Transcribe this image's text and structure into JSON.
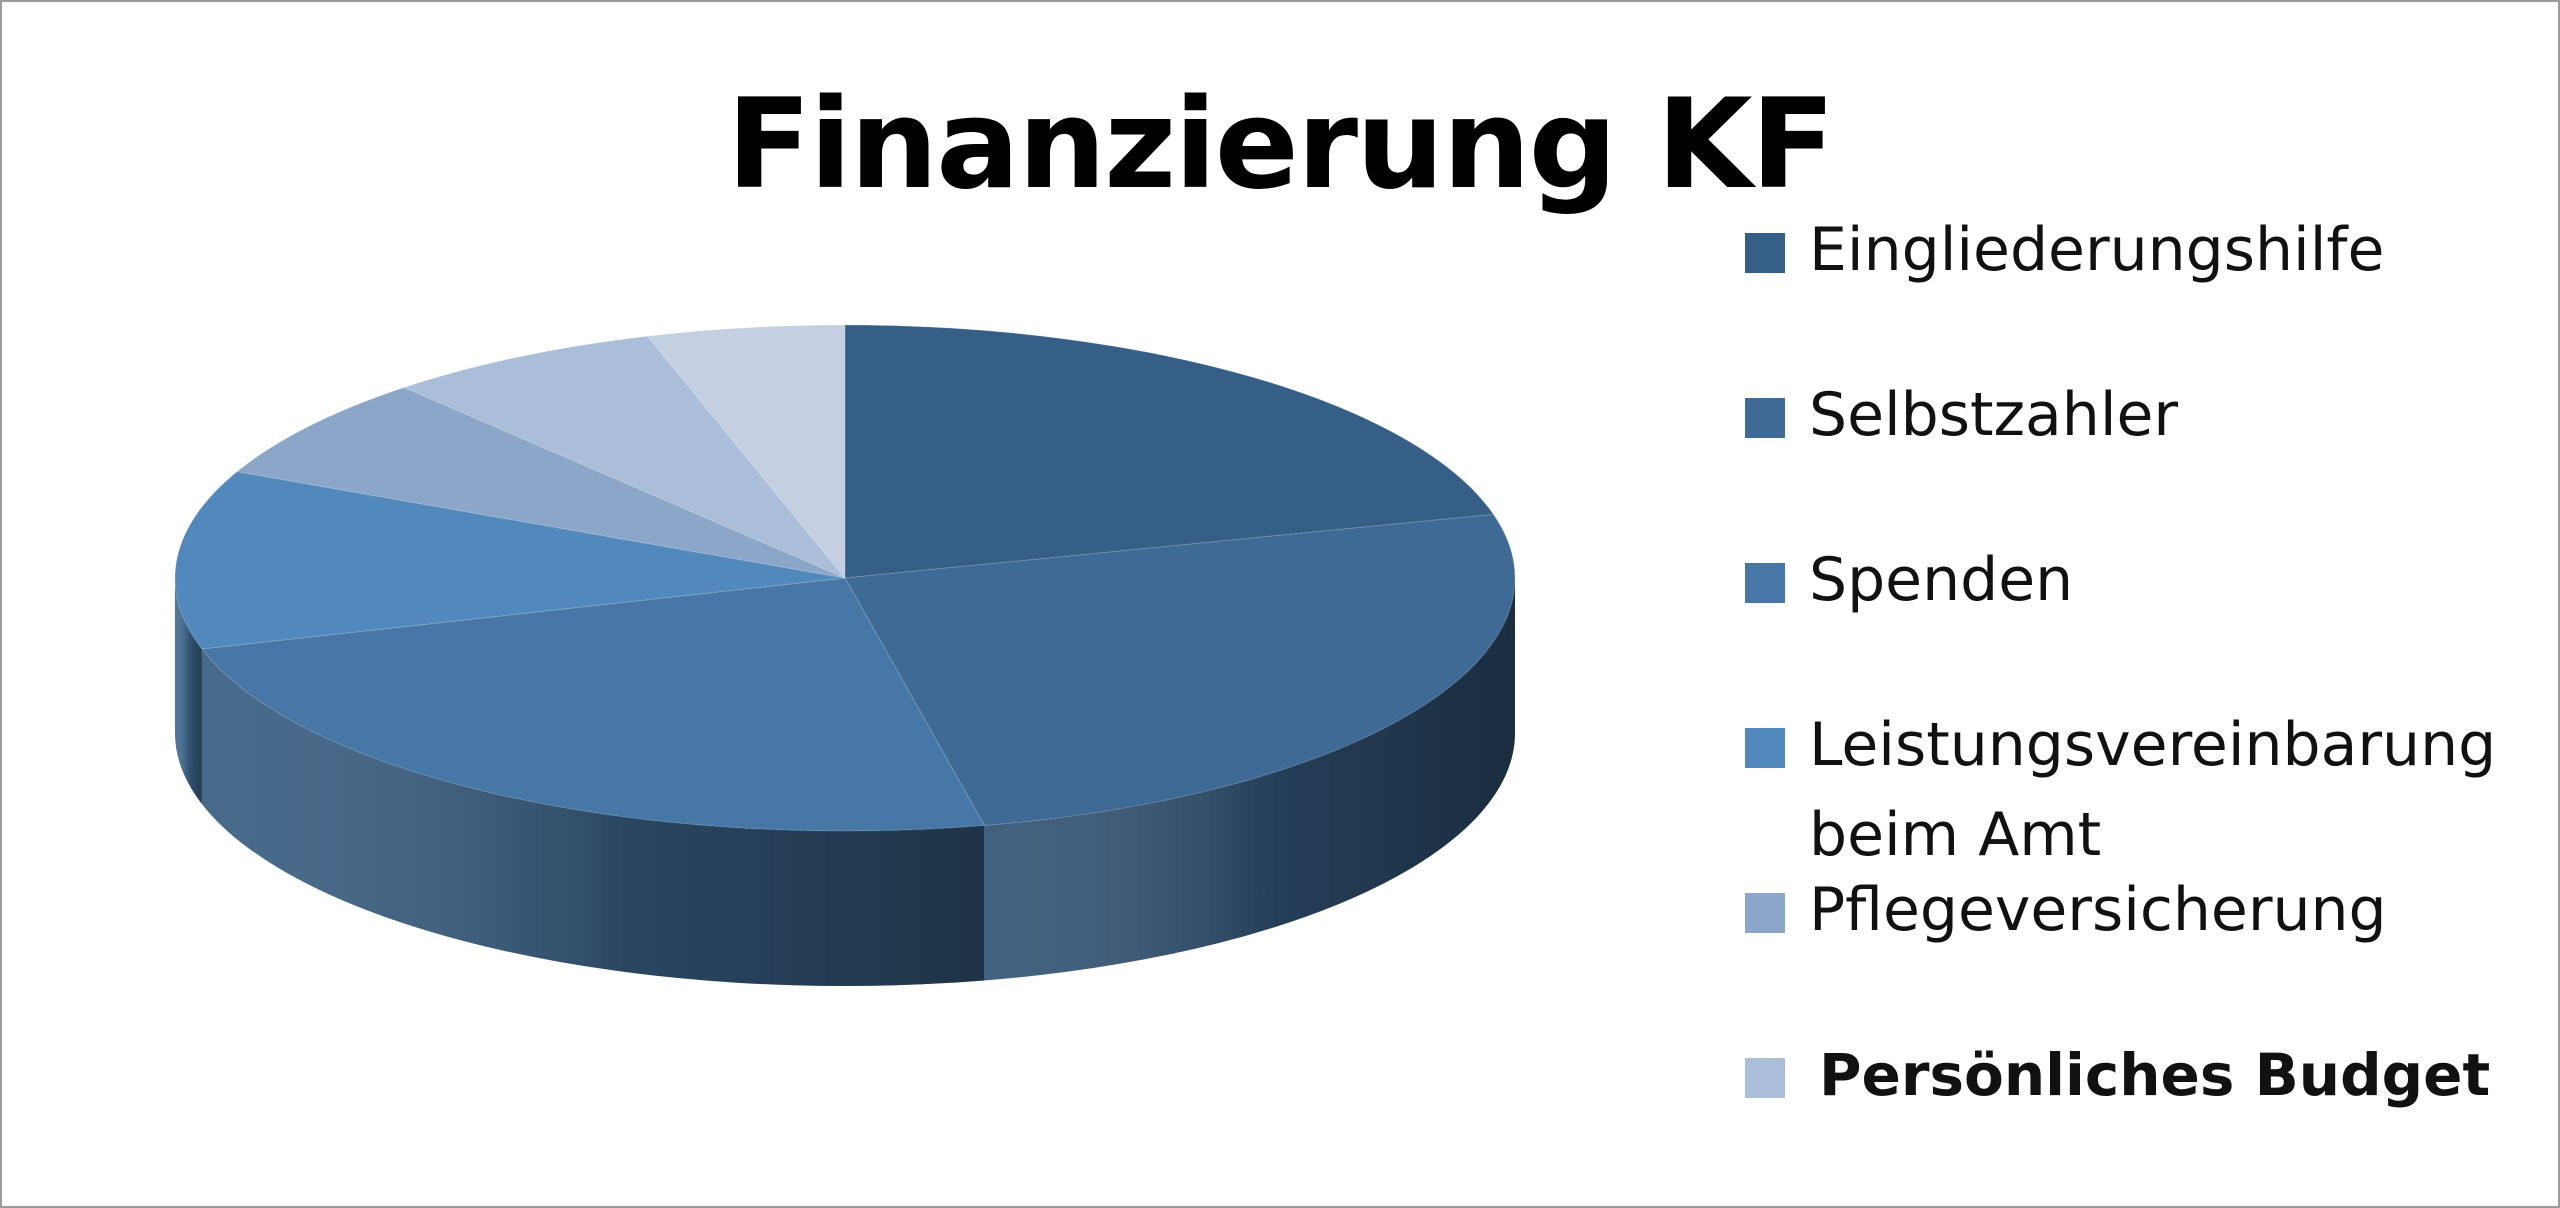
{
  "chart_data": {
    "type": "pie",
    "style": "3d",
    "title": "Finanzierung KF",
    "legend_position": "right",
    "categories": [
      "Eingliederungshilfe",
      "Selbstzahler",
      "Spenden",
      "Leistungsvereinbarung beim Amt",
      "Pflegeversicherung",
      "Persönliches Budget"
    ],
    "values": [
      22,
      27,
      25,
      12,
      7,
      7
    ],
    "extra_slice": {
      "value": 5,
      "color": "#c4d0e2"
    },
    "colors": [
      "#355f86",
      "#3f6a96",
      "#4677a6",
      "#5289bd",
      "#8ba6c9",
      "#aabdd9"
    ],
    "legend_colors": [
      "#355f86",
      "#3f6a96",
      "#4677a6",
      "#5289bd",
      "#8ba6c9",
      "#aabdd9"
    ]
  }
}
